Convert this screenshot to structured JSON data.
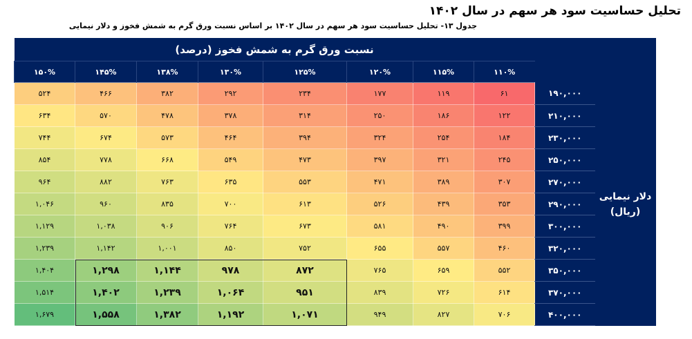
{
  "title": "تحلیل حساسیت سود هر سهم در سال ۱۴۰۲",
  "subtitle": "جدول ۱۳- تحلیل حساسیت سود هر سهم در سال ۱۴۰۲ بر اساس نسبت ورق گرم به شمش فخوز و دلار نیمایی",
  "table": {
    "column_group_label": "نسبت ورق گرم به شمش فخوز (درصد)",
    "row_group_label_line1": "دلار نیمایی",
    "row_group_label_line2": "(ریال)",
    "columns": [
      "۱۱۰%",
      "۱۱۵%",
      "۱۲۰%",
      "۱۲۵%",
      "۱۳۰%",
      "۱۳۸%",
      "۱۴۵%",
      "۱۵۰%"
    ],
    "rows": [
      {
        "label": "۱۹۰,۰۰۰",
        "values": [
          61,
          119,
          177,
          234,
          292,
          382,
          466,
          524
        ]
      },
      {
        "label": "۲۱۰,۰۰۰",
        "values": [
          122,
          186,
          250,
          314,
          378,
          478,
          570,
          634
        ]
      },
      {
        "label": "۲۳۰,۰۰۰",
        "values": [
          184,
          254,
          324,
          394,
          464,
          573,
          674,
          744
        ]
      },
      {
        "label": "۲۵۰,۰۰۰",
        "values": [
          245,
          321,
          397,
          473,
          549,
          668,
          778,
          854
        ]
      },
      {
        "label": "۲۷۰,۰۰۰",
        "values": [
          307,
          389,
          471,
          553,
          635,
          763,
          882,
          964
        ]
      },
      {
        "label": "۲۹۰,۰۰۰",
        "values": [
          353,
          439,
          526,
          613,
          700,
          835,
          960,
          1046
        ]
      },
      {
        "label": "۳۰۰,۰۰۰",
        "values": [
          399,
          490,
          581,
          673,
          764,
          906,
          1038,
          1129
        ]
      },
      {
        "label": "۳۲۰,۰۰۰",
        "values": [
          460,
          557,
          655,
          752,
          850,
          1001,
          1142,
          1239
        ]
      },
      {
        "label": "۳۵۰,۰۰۰",
        "values": [
          552,
          659,
          765,
          872,
          978,
          1144,
          1298,
          1404
        ]
      },
      {
        "label": "۳۷۰,۰۰۰",
        "values": [
          614,
          726,
          839,
          951,
          1064,
          1239,
          1402,
          1514
        ]
      },
      {
        "label": "۴۰۰,۰۰۰",
        "values": [
          706,
          827,
          949,
          1071,
          1192,
          1382,
          1558,
          1679
        ]
      }
    ],
    "highlight": {
      "rows": [
        "۳۵۰,۰۰۰",
        "۳۷۰,۰۰۰",
        "۴۰۰,۰۰۰"
      ],
      "columns": [
        "۱۲۵%",
        "۱۳۰%",
        "۱۳۸%",
        "۱۴۵%"
      ]
    }
  },
  "colors": {
    "header_bg": "#00205f",
    "low": "#f8696b",
    "mid": "#ffeb84",
    "high": "#63be7b"
  }
}
